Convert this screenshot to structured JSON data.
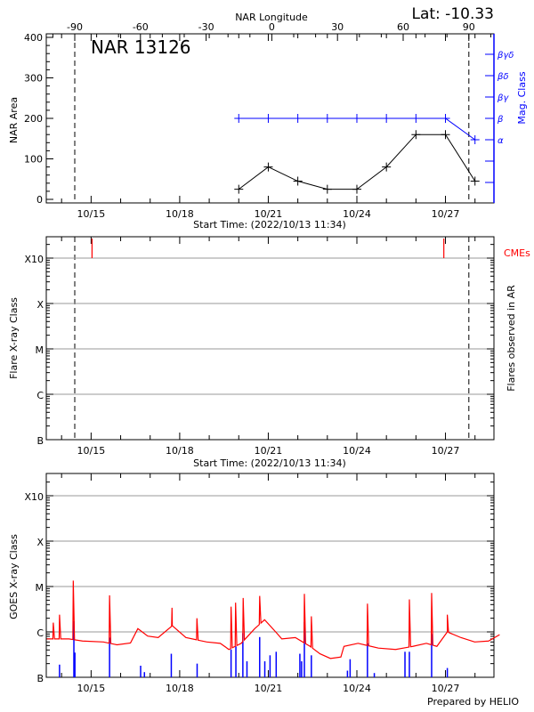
{
  "header": {
    "lat_label": "Lat: -10.33",
    "region_title": "NAR 13126",
    "prepared_by": "Prepared by HELIO"
  },
  "colors": {
    "nar_area": "#000000",
    "mag_class": "#0000ff",
    "goes_flux": "#ff0000",
    "goes_flares": "#0000ff",
    "cme": "#ff0000",
    "grid": "#999999"
  },
  "chart_data": [
    {
      "type": "line",
      "title": "NAR 13126",
      "xlabel": "Start Time: (2022/10/13 11:34)",
      "ylabel": "NAR Area",
      "y2label": "Mag. Class",
      "top_axis_label": "NAR Longitude",
      "top_axis_ticks": [
        "-90",
        "-60",
        "-30",
        "0",
        "30",
        "60",
        "90"
      ],
      "top_axis_values": [
        -90,
        -60,
        -30,
        0,
        30,
        60,
        90
      ],
      "limb_longitudes": [
        -90,
        90
      ],
      "x_start": "2022-10-13 11:34",
      "x_tick_labels": [
        "10/15",
        "10/18",
        "10/21",
        "10/24",
        "10/27"
      ],
      "ylim": [
        0,
        400
      ],
      "y_ticks": [
        "0",
        "100",
        "200",
        "300",
        "400"
      ],
      "y2_ticks": [
        "α",
        "β",
        "βγ",
        "βδ",
        "βγδ"
      ],
      "series": [
        {
          "name": "NAR Area",
          "x": [
            "2022-10-20 00:00",
            "2022-10-21 00:00",
            "2022-10-22 00:00",
            "2022-10-23 00:00",
            "2022-10-24 00:00",
            "2022-10-25 00:00",
            "2022-10-26 00:00",
            "2022-10-27 00:00",
            "2022-10-28 00:00"
          ],
          "y": [
            25,
            80,
            45,
            25,
            25,
            80,
            160,
            160,
            45
          ]
        },
        {
          "name": "Mag. Class",
          "x": [
            "2022-10-20 00:00",
            "2022-10-21 00:00",
            "2022-10-22 00:00",
            "2022-10-23 00:00",
            "2022-10-24 00:00",
            "2022-10-25 00:00",
            "2022-10-26 00:00",
            "2022-10-27 00:00",
            "2022-10-28 00:00"
          ],
          "y": [
            "β",
            "β",
            "β",
            "β",
            "β",
            "β",
            "β",
            "β",
            "α"
          ]
        }
      ]
    },
    {
      "type": "bar",
      "xlabel": "Start Time: (2022/10/13 11:34)",
      "ylabel": "Flare X-ray Class",
      "y2label": "Flares observed in AR",
      "cme_label": "CMEs",
      "y_ticks": [
        "B",
        "C",
        "M",
        "X",
        "X10"
      ],
      "y_scale": "log",
      "grid": true,
      "x_tick_labels": [
        "10/15",
        "10/18",
        "10/21",
        "10/24",
        "10/27"
      ],
      "cmes": [
        "2022-10-15 00:45",
        "2022-10-26 22:40"
      ],
      "flares": []
    },
    {
      "type": "line",
      "ylabel": "GOES X-ray Class",
      "y_ticks": [
        "B",
        "C",
        "M",
        "X",
        "X10"
      ],
      "y_scale": "log",
      "grid": true,
      "x_tick_labels": [
        "10/15",
        "10/18",
        "10/21",
        "10/24",
        "10/27"
      ],
      "goes_background": [
        [
          "2022-10-13 12:00",
          7e-07
        ],
        [
          "2022-10-14 06:00",
          7e-07
        ],
        [
          "2022-10-14 17:00",
          6.3e-07
        ],
        [
          "2022-10-15 10:00",
          6e-07
        ],
        [
          "2022-10-15 21:00",
          5.2e-07
        ],
        [
          "2022-10-16 08:00",
          5.7e-07
        ],
        [
          "2022-10-16 14:00",
          1.18e-06
        ],
        [
          "2022-10-16 22:00",
          8.1e-07
        ],
        [
          "2022-10-17 06:30",
          7.5e-07
        ],
        [
          "2022-10-17 18:00",
          1.37e-06
        ],
        [
          "2022-10-18 05:00",
          7.5e-07
        ],
        [
          "2022-10-18 22:00",
          6e-07
        ],
        [
          "2022-10-19 09:00",
          5.6e-07
        ],
        [
          "2022-10-19 16:00",
          4.1e-07
        ],
        [
          "2022-10-20 02:00",
          5.6e-07
        ],
        [
          "2022-10-20 13:00",
          1.18e-06
        ],
        [
          "2022-10-20 21:00",
          1.85e-06
        ],
        [
          "2022-10-21 06:00",
          1e-06
        ],
        [
          "2022-10-21 11:00",
          7e-07
        ],
        [
          "2022-10-21 22:00",
          7.5e-07
        ],
        [
          "2022-10-22 10:00",
          4.8e-07
        ],
        [
          "2022-10-22 18:00",
          3.3e-07
        ],
        [
          "2022-10-23 02:30",
          2.6e-07
        ],
        [
          "2022-10-23 11:00",
          2.8e-07
        ],
        [
          "2022-10-23 13:30",
          4.8e-07
        ],
        [
          "2022-10-24 01:00",
          5.6e-07
        ],
        [
          "2022-10-24 17:30",
          4.4e-07
        ],
        [
          "2022-10-25 07:30",
          4.1e-07
        ],
        [
          "2022-10-25 21:30",
          4.8e-07
        ],
        [
          "2022-10-26 08:30",
          5.6e-07
        ],
        [
          "2022-10-26 17:00",
          4.8e-07
        ],
        [
          "2022-10-27 01:30",
          1e-06
        ],
        [
          "2022-10-27 12:30",
          7.5e-07
        ],
        [
          "2022-10-27 23:45",
          6e-07
        ],
        [
          "2022-10-28 11:00",
          6.3e-07
        ],
        [
          "2022-10-28 20:00",
          8.7e-07
        ]
      ],
      "goes_peaks": [
        [
          "2022-10-13 17:15",
          1.6e-06
        ],
        [
          "2022-10-13 22:20",
          2.4e-06
        ],
        [
          "2022-10-14 09:30",
          1.35e-05
        ],
        [
          "2022-10-15 15:00",
          6.4e-06
        ],
        [
          "2022-10-17 17:45",
          3.4e-06
        ],
        [
          "2022-10-18 14:00",
          2e-06
        ],
        [
          "2022-10-19 17:45",
          3.6e-06
        ],
        [
          "2022-10-19 21:25",
          4.4e-06
        ],
        [
          "2022-10-20 03:35",
          5.6e-06
        ],
        [
          "2022-10-20 17:00",
          6.2e-06
        ],
        [
          "2022-10-22 05:20",
          6.9e-06
        ],
        [
          "2022-10-22 11:00",
          2.2e-06
        ],
        [
          "2022-10-24 08:35",
          4.2e-06
        ],
        [
          "2022-10-25 18:40",
          5.2e-06
        ],
        [
          "2022-10-26 12:45",
          7.2e-06
        ],
        [
          "2022-10-27 01:30",
          2.4e-06
        ]
      ],
      "flare_events": [
        [
          "2022-10-13 22:20",
          1.9e-07
        ],
        [
          "2022-10-14 10:00",
          1.72e-06
        ],
        [
          "2022-10-14 10:50",
          3.5e-07
        ],
        [
          "2022-10-15 15:00",
          7.5e-07
        ],
        [
          "2022-10-16 16:15",
          1.8e-07
        ],
        [
          "2022-10-16 19:20",
          1.3e-07
        ],
        [
          "2022-10-17 17:10",
          3.3e-07
        ],
        [
          "2022-10-18 14:10",
          2e-07
        ],
        [
          "2022-10-19 17:45",
          4.1e-07
        ],
        [
          "2022-10-19 21:40",
          4.8e-07
        ],
        [
          "2022-10-20 03:20",
          9.4e-07
        ],
        [
          "2022-10-20 06:40",
          2.25e-07
        ],
        [
          "2022-10-20 17:00",
          7.7e-07
        ],
        [
          "2022-10-20 21:10",
          2.25e-07
        ],
        [
          "2022-10-21 01:25",
          3.05e-07
        ],
        [
          "2022-10-21 06:25",
          3.65e-07
        ],
        [
          "2022-10-22 01:40",
          3.3e-07
        ],
        [
          "2022-10-22 03:05",
          2.25e-07
        ],
        [
          "2022-10-22 05:20",
          1.64e-06
        ],
        [
          "2022-10-22 11:00",
          3.05e-07
        ],
        [
          "2022-10-23 16:20",
          1.4e-07
        ],
        [
          "2022-10-23 18:30",
          2.5e-07
        ],
        [
          "2022-10-24 08:35",
          5.6e-07
        ],
        [
          "2022-10-24 14:10",
          1.24e-07
        ],
        [
          "2022-10-25 15:05",
          3.65e-07
        ],
        [
          "2022-10-25 18:40",
          3.65e-07
        ],
        [
          "2022-10-26 12:45",
          9e-07
        ],
        [
          "2022-10-27 01:30",
          1.6e-07
        ]
      ]
    }
  ]
}
